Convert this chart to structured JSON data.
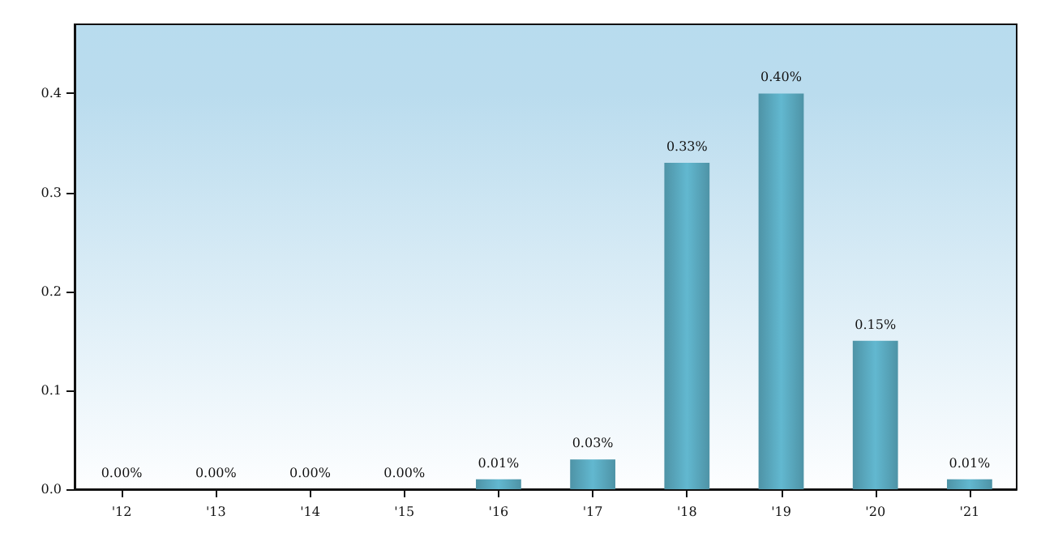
{
  "chart_data": {
    "type": "bar",
    "categories": [
      "'12",
      "'13",
      "'14",
      "'15",
      "'16",
      "'17",
      "'18",
      "'19",
      "'20",
      "'21"
    ],
    "values": [
      0,
      0,
      0,
      0,
      0.01,
      0.03,
      0.33,
      0.4,
      0.15,
      0.01
    ],
    "value_labels": [
      "0.00%",
      "0.00%",
      "0.00%",
      "0.00%",
      "0.01%",
      "0.03%",
      "0.33%",
      "0.40%",
      "0.15%",
      "0.01%"
    ],
    "color": "#62b8d0",
    "ylim": [
      0,
      0.47
    ],
    "yticks": [
      {
        "value": 0,
        "label": "0.0"
      },
      {
        "value": 0.1,
        "label": "0.1"
      },
      {
        "value": 0.2,
        "label": "0.2"
      },
      {
        "value": 0.3,
        "label": "0.3"
      },
      {
        "value": 0.4,
        "label": "0.4"
      }
    ],
    "grid": false
  }
}
